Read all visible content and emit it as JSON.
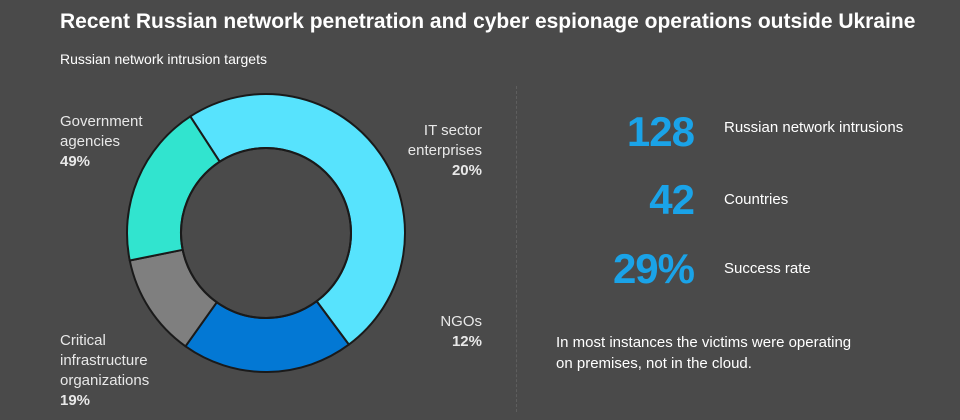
{
  "header": {
    "title": "Recent Russian network penetration and cyber espionage operations outside Ukraine",
    "subtitle": "Russian network intrusion targets"
  },
  "chart_data": {
    "type": "pie",
    "style": "donut",
    "slices": [
      {
        "label": "Government agencies",
        "value": 49,
        "display": "49%",
        "color": "#57e3fd"
      },
      {
        "label": "IT sector enterprises",
        "value": 20,
        "display": "20%",
        "color": "#0378d4"
      },
      {
        "label": "NGOs",
        "value": 12,
        "display": "12%",
        "color": "#7f7f7f"
      },
      {
        "label": "Critical infrastructure organizations",
        "value": 19,
        "display": "19%",
        "color": "#31e4cf"
      }
    ]
  },
  "labels": {
    "gov": {
      "line1": "Government",
      "line2": "agencies",
      "pct": "49%"
    },
    "it": {
      "line1": "IT sector",
      "line2": "enterprises",
      "pct": "20%"
    },
    "ngo": {
      "line1": "NGOs",
      "pct": "12%"
    },
    "ci": {
      "line1": "Critical",
      "line2": "infrastructure",
      "line3": "organizations",
      "pct": "19%"
    }
  },
  "stats": [
    {
      "value": "128",
      "label": "Russian network intrusions"
    },
    {
      "value": "42",
      "label": "Countries"
    },
    {
      "value": "29%",
      "label": "Success rate"
    }
  ],
  "note": {
    "line1": "In most instances the victims were operating",
    "line2": "on premises, not in the cloud."
  },
  "colors": {
    "background": "#4a4a4a",
    "accent": "#1aa3e8",
    "outline": "#1a1a1a"
  }
}
